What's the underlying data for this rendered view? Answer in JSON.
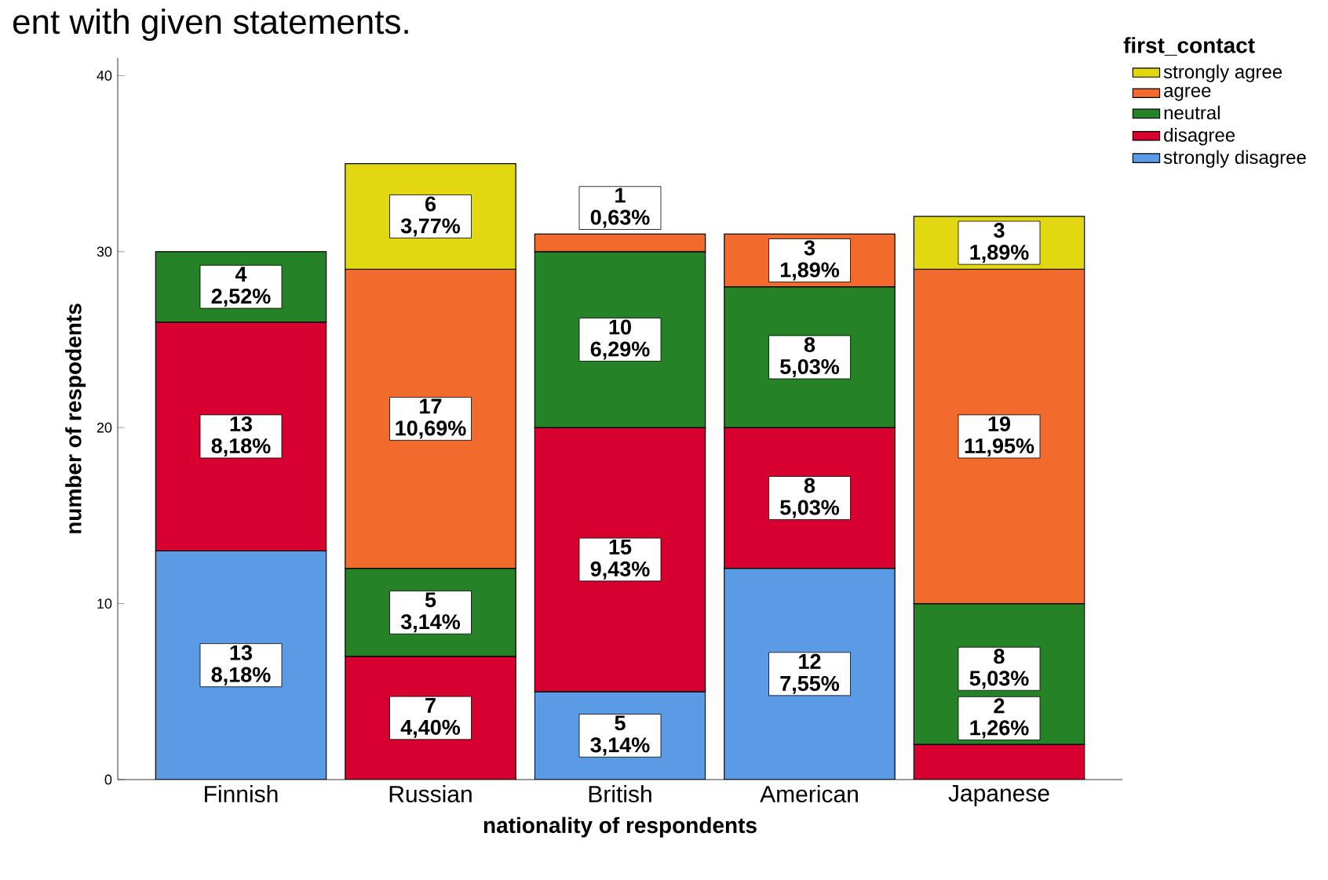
{
  "chart_data": {
    "type": "bar",
    "stacked": true,
    "title": "ent with given statements.",
    "xlabel": "nationality of respondents",
    "ylabel": "number of respodents",
    "legend_title": "first_contact",
    "legend": "top right",
    "categories": [
      "Finnish",
      "Russian",
      "British",
      "American",
      "Japanese"
    ],
    "ylim": [
      0,
      41
    ],
    "yticks": [
      0,
      10,
      20,
      30,
      40
    ],
    "series": [
      {
        "name": "strongly disagree",
        "color": "#5b9be6",
        "values": [
          13,
          null,
          5,
          12,
          null
        ],
        "value_labels": [
          "13 8,18%",
          null,
          "5 3,14%",
          "12 7,55%",
          null
        ]
      },
      {
        "name": "disagree",
        "color": "#d70030",
        "values": [
          13,
          7,
          15,
          8,
          2
        ],
        "value_labels": [
          "13 8,18%",
          "7 4,40%",
          "15 9,43%",
          "8 5,03%",
          "2 1,26%"
        ]
      },
      {
        "name": "neutral",
        "color": "#258226",
        "values": [
          4,
          5,
          10,
          8,
          8
        ],
        "value_labels": [
          "4 2,52%",
          "5 3,14%",
          "10 6,29%",
          "8 5,03%",
          "8 5,03%"
        ]
      },
      {
        "name": "agree",
        "color": "#f26a2c",
        "values": [
          null,
          17,
          1,
          3,
          19
        ],
        "value_labels": [
          null,
          "17 10,69%",
          "1 0,63%",
          "3 1,89%",
          "19 11,95%"
        ]
      },
      {
        "name": "strongly agree",
        "color": "#e2d812",
        "values": [
          null,
          6,
          null,
          null,
          3
        ],
        "value_labels": [
          null,
          "6 3,77%",
          null,
          null,
          "3 1,89%"
        ]
      }
    ]
  }
}
